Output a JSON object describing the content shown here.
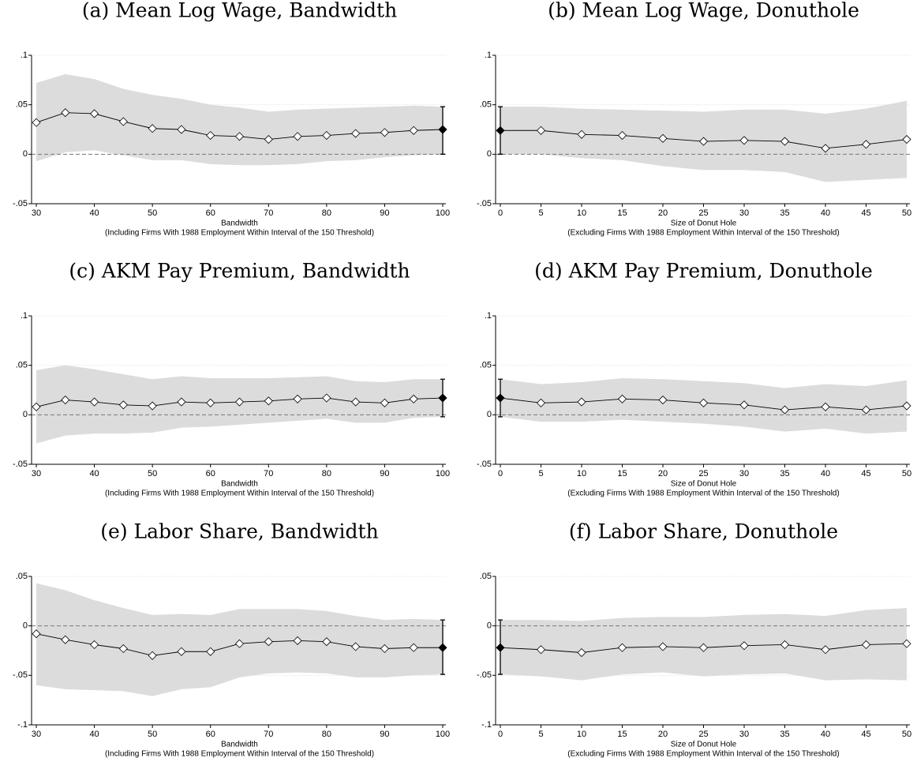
{
  "chart_data": [
    {
      "type": "line",
      "title": "(a) Mean Log Wage, Bandwidth",
      "x_label": "Bandwidth",
      "x_note": "(Including Firms With 1988 Employment Within Interval of the 150 Threshold)",
      "x": [
        30,
        35,
        40,
        45,
        50,
        55,
        60,
        65,
        70,
        75,
        80,
        85,
        90,
        95,
        100
      ],
      "values": [
        0.032,
        0.042,
        0.041,
        0.033,
        0.026,
        0.025,
        0.019,
        0.018,
        0.015,
        0.018,
        0.019,
        0.021,
        0.022,
        0.024,
        0.025
      ],
      "ci_upper": [
        0.072,
        0.081,
        0.076,
        0.066,
        0.06,
        0.056,
        0.05,
        0.047,
        0.043,
        0.045,
        0.046,
        0.047,
        0.048,
        0.049,
        0.048
      ],
      "ci_lower": [
        -0.007,
        0.002,
        0.004,
        -0.001,
        -0.006,
        -0.006,
        -0.01,
        -0.011,
        -0.011,
        -0.01,
        -0.007,
        -0.006,
        -0.003,
        -0.001,
        0.0
      ],
      "baseline_x": 100,
      "xlim": [
        30,
        100
      ],
      "xticks": [
        30,
        40,
        50,
        60,
        70,
        80,
        90,
        100
      ],
      "ylim": [
        -0.05,
        0.1
      ],
      "yticks": [
        {
          "value": -0.05,
          "label": "-.05"
        },
        0,
        {
          "value": 0.05,
          "label": ".05"
        },
        {
          "value": 0.1,
          "label": ".1"
        }
      ],
      "grid": true,
      "zero_line": true,
      "color": "#000000",
      "band_color": "#dcdcdc"
    },
    {
      "type": "line",
      "title": "(b) Mean Log Wage, Donuthole",
      "x_label": "Size of Donut Hole",
      "x_note": "(Excluding Firms With 1988 Employment Within Interval of the 150 Threshold)",
      "x": [
        0,
        5,
        10,
        15,
        20,
        25,
        30,
        35,
        40,
        45,
        50
      ],
      "values": [
        0.024,
        0.024,
        0.02,
        0.019,
        0.016,
        0.013,
        0.014,
        0.013,
        0.006,
        0.01,
        0.015
      ],
      "ci_upper": [
        0.048,
        0.048,
        0.046,
        0.045,
        0.044,
        0.043,
        0.045,
        0.045,
        0.041,
        0.046,
        0.054
      ],
      "ci_lower": [
        0.0,
        0.0,
        -0.004,
        -0.006,
        -0.012,
        -0.016,
        -0.016,
        -0.018,
        -0.028,
        -0.026,
        -0.024
      ],
      "baseline_x": 0,
      "xlim": [
        0,
        50
      ],
      "xticks": [
        0,
        5,
        10,
        15,
        20,
        25,
        30,
        35,
        40,
        45,
        50
      ],
      "ylim": [
        -0.05,
        0.1
      ],
      "yticks": [
        {
          "value": -0.05,
          "label": "-.05"
        },
        0,
        {
          "value": 0.05,
          "label": ".05"
        },
        {
          "value": 0.1,
          "label": ".1"
        }
      ],
      "grid": true,
      "zero_line": true,
      "color": "#000000",
      "band_color": "#dcdcdc"
    },
    {
      "type": "line",
      "title": "(c) AKM Pay Premium, Bandwidth",
      "x_label": "Bandwidth",
      "x_note": "(Including Firms With 1988 Employment Within Interval of the 150 Threshold)",
      "x": [
        30,
        35,
        40,
        45,
        50,
        55,
        60,
        65,
        70,
        75,
        80,
        85,
        90,
        95,
        100
      ],
      "values": [
        0.008,
        0.015,
        0.013,
        0.01,
        0.009,
        0.013,
        0.012,
        0.013,
        0.014,
        0.016,
        0.017,
        0.013,
        0.012,
        0.016,
        0.017
      ],
      "ci_upper": [
        0.045,
        0.05,
        0.046,
        0.041,
        0.036,
        0.039,
        0.037,
        0.037,
        0.037,
        0.038,
        0.039,
        0.034,
        0.033,
        0.036,
        0.036
      ],
      "ci_lower": [
        -0.029,
        -0.021,
        -0.019,
        -0.019,
        -0.018,
        -0.013,
        -0.012,
        -0.01,
        -0.008,
        -0.006,
        -0.004,
        -0.008,
        -0.008,
        -0.003,
        -0.002
      ],
      "baseline_x": 100,
      "xlim": [
        30,
        100
      ],
      "xticks": [
        30,
        40,
        50,
        60,
        70,
        80,
        90,
        100
      ],
      "ylim": [
        -0.05,
        0.1
      ],
      "yticks": [
        {
          "value": -0.05,
          "label": "-.05"
        },
        0,
        {
          "value": 0.05,
          "label": ".05"
        },
        {
          "value": 0.1,
          "label": ".1"
        }
      ],
      "grid": true,
      "zero_line": true,
      "color": "#000000",
      "band_color": "#dcdcdc"
    },
    {
      "type": "line",
      "title": "(d) AKM Pay Premium, Donuthole",
      "x_label": "Size of Donut Hole",
      "x_note": "(Excluding Firms With 1988 Employment Within Interval of the 150 Threshold)",
      "x": [
        0,
        5,
        10,
        15,
        20,
        25,
        30,
        35,
        40,
        45,
        50
      ],
      "values": [
        0.017,
        0.012,
        0.013,
        0.016,
        0.015,
        0.012,
        0.01,
        0.005,
        0.008,
        0.005,
        0.009
      ],
      "ci_upper": [
        0.036,
        0.031,
        0.033,
        0.037,
        0.036,
        0.034,
        0.032,
        0.027,
        0.031,
        0.029,
        0.035
      ],
      "ci_lower": [
        -0.002,
        -0.007,
        -0.007,
        -0.005,
        -0.007,
        -0.009,
        -0.012,
        -0.017,
        -0.014,
        -0.019,
        -0.017
      ],
      "baseline_x": 0,
      "xlim": [
        0,
        50
      ],
      "xticks": [
        0,
        5,
        10,
        15,
        20,
        25,
        30,
        35,
        40,
        45,
        50
      ],
      "ylim": [
        -0.05,
        0.1
      ],
      "yticks": [
        {
          "value": -0.05,
          "label": "-.05"
        },
        0,
        {
          "value": 0.05,
          "label": ".05"
        },
        {
          "value": 0.1,
          "label": ".1"
        }
      ],
      "grid": true,
      "zero_line": true,
      "color": "#000000",
      "band_color": "#dcdcdc"
    },
    {
      "type": "line",
      "title": "(e) Labor Share, Bandwidth",
      "x_label": "Bandwidth",
      "x_note": "(Including Firms With 1988 Employment Within Interval of the 150 Threshold)",
      "x": [
        30,
        35,
        40,
        45,
        50,
        55,
        60,
        65,
        70,
        75,
        80,
        85,
        90,
        95,
        100
      ],
      "values": [
        -0.008,
        -0.014,
        -0.019,
        -0.023,
        -0.03,
        -0.026,
        -0.026,
        -0.018,
        -0.016,
        -0.015,
        -0.016,
        -0.021,
        -0.023,
        -0.022,
        -0.022
      ],
      "ci_upper": [
        0.043,
        0.036,
        0.026,
        0.018,
        0.011,
        0.012,
        0.011,
        0.017,
        0.017,
        0.017,
        0.015,
        0.01,
        0.006,
        0.007,
        0.006
      ],
      "ci_lower": [
        -0.06,
        -0.064,
        -0.065,
        -0.066,
        -0.071,
        -0.064,
        -0.062,
        -0.052,
        -0.048,
        -0.047,
        -0.048,
        -0.052,
        -0.052,
        -0.05,
        -0.049
      ],
      "baseline_x": 100,
      "xlim": [
        30,
        100
      ],
      "xticks": [
        30,
        40,
        50,
        60,
        70,
        80,
        90,
        100
      ],
      "ylim": [
        -0.1,
        0.05
      ],
      "yticks": [
        {
          "value": -0.1,
          "label": "-.1"
        },
        {
          "value": -0.05,
          "label": "-.05"
        },
        0,
        {
          "value": 0.05,
          "label": ".05"
        }
      ],
      "grid": true,
      "zero_line": true,
      "color": "#000000",
      "band_color": "#dcdcdc"
    },
    {
      "type": "line",
      "title": "(f) Labor Share, Donuthole",
      "x_label": "Size of Donut Hole",
      "x_note": "(Excluding Firms With 1988 Employment Within Interval of the 150 Threshold)",
      "x": [
        0,
        5,
        10,
        15,
        20,
        25,
        30,
        35,
        40,
        45,
        50
      ],
      "values": [
        -0.022,
        -0.024,
        -0.027,
        -0.022,
        -0.021,
        -0.022,
        -0.02,
        -0.019,
        -0.024,
        -0.019,
        -0.018
      ],
      "ci_upper": [
        0.006,
        0.006,
        0.005,
        0.008,
        0.009,
        0.009,
        0.011,
        0.012,
        0.01,
        0.016,
        0.018
      ],
      "ci_lower": [
        -0.049,
        -0.051,
        -0.055,
        -0.049,
        -0.047,
        -0.051,
        -0.049,
        -0.048,
        -0.055,
        -0.054,
        -0.055
      ],
      "baseline_x": 0,
      "xlim": [
        0,
        50
      ],
      "xticks": [
        0,
        5,
        10,
        15,
        20,
        25,
        30,
        35,
        40,
        45,
        50
      ],
      "ylim": [
        -0.1,
        0.05
      ],
      "yticks": [
        {
          "value": -0.1,
          "label": "-.1"
        },
        {
          "value": -0.05,
          "label": "-.05"
        },
        0,
        {
          "value": 0.05,
          "label": ".05"
        }
      ],
      "grid": true,
      "zero_line": true,
      "color": "#000000",
      "band_color": "#dcdcdc"
    }
  ]
}
